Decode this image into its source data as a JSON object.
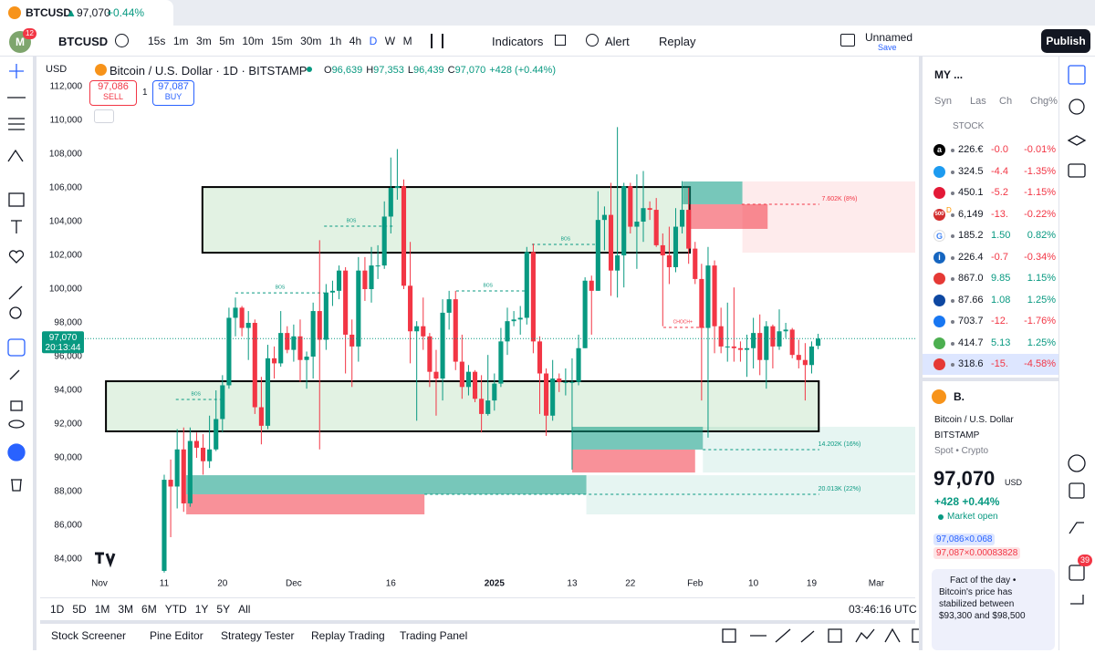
{
  "tab": {
    "symbol": "BTCUSD",
    "arrow": "▲",
    "price": "97,070",
    "change": "+0.44%"
  },
  "toolbar": {
    "avatar": "M",
    "avatar_badge": "12",
    "symbol": "BTCUSD",
    "intervals": [
      "15s",
      "1m",
      "3m",
      "5m",
      "10m",
      "15m",
      "30m",
      "1h",
      "4h",
      "D",
      "W",
      "M"
    ],
    "active_interval": 9,
    "indicators": "Indicators",
    "alert": "Alert",
    "replay": "Replay",
    "layout_name": "Unnamed",
    "save": "Save",
    "publish": "Publish"
  },
  "legend": {
    "currency": "USD",
    "title": "Bitcoin / U.S. Dollar · 1D · BITSTAMP",
    "ohlc": [
      {
        "k": "O",
        "v": "96,639"
      },
      {
        "k": "H",
        "v": "97,353"
      },
      {
        "k": "L",
        "v": "96,439"
      },
      {
        "k": "C",
        "v": "97,070"
      }
    ],
    "change": "+428 (+0.44%)",
    "sell_price": "97,086",
    "sell": "SELL",
    "spread": "1",
    "buy_price": "97,087",
    "buy": "BUY"
  },
  "chart_data": {
    "type": "candlestick",
    "up_color": "#089981",
    "down_color": "#f23645",
    "candles": [
      [
        83300,
        89000,
        83200,
        88700
      ],
      [
        88700,
        89900,
        85300,
        88300
      ],
      [
        88300,
        91700,
        87000,
        90500
      ],
      [
        90500,
        91800,
        86800,
        87300
      ],
      [
        87300,
        91800,
        87100,
        91000
      ],
      [
        91000,
        91500,
        90000,
        90600
      ],
      [
        90600,
        91400,
        89000,
        89800
      ],
      [
        89800,
        92500,
        89400,
        90500
      ],
      [
        90500,
        94000,
        90400,
        92300
      ],
      [
        92300,
        94900,
        91500,
        94300
      ],
      [
        94300,
        98900,
        94100,
        98300
      ],
      [
        98300,
        99500,
        97200,
        98900
      ],
      [
        98900,
        99000,
        97200,
        97700
      ],
      [
        97700,
        98700,
        95800,
        98000
      ],
      [
        98000,
        98200,
        92600,
        93000
      ],
      [
        93000,
        94800,
        90800,
        91900
      ],
      [
        91900,
        96700,
        91700,
        95900
      ],
      [
        95900,
        96600,
        94700,
        95600
      ],
      [
        95600,
        98700,
        95400,
        97400
      ],
      [
        97400,
        97800,
        96200,
        96400
      ],
      [
        96400,
        97900,
        95700,
        97200
      ],
      [
        97200,
        98200,
        94500,
        95800
      ],
      [
        95800,
        96300,
        94100,
        96000
      ],
      [
        96000,
        99200,
        94700,
        98700
      ],
      [
        98700,
        102900,
        90500,
        97000
      ],
      [
        97000,
        100300,
        96400,
        99800
      ],
      [
        99800,
        100500,
        99000,
        99900
      ],
      [
        99900,
        101400,
        99400,
        101100
      ],
      [
        101100,
        101300,
        95000,
        97300
      ],
      [
        97300,
        98200,
        94200,
        96600
      ],
      [
        96600,
        101900,
        95700,
        101100
      ],
      [
        101100,
        101900,
        99300,
        100000
      ],
      [
        100000,
        102500,
        99200,
        101400
      ],
      [
        101400,
        102600,
        100600,
        101400
      ],
      [
        101400,
        105200,
        101200,
        104300
      ],
      [
        104300,
        107800,
        103300,
        106000
      ],
      [
        106000,
        108300,
        105300,
        106100
      ],
      [
        106100,
        106500,
        100000,
        100200
      ],
      [
        100200,
        102800,
        95600,
        97500
      ],
      [
        97500,
        98100,
        92200,
        97800
      ],
      [
        97800,
        99500,
        96400,
        97200
      ],
      [
        97200,
        97400,
        94200,
        95100
      ],
      [
        95100,
        96400,
        92500,
        94700
      ],
      [
        94700,
        99400,
        93400,
        98600
      ],
      [
        98600,
        99900,
        97600,
        99400
      ],
      [
        99400,
        99900,
        95200,
        95700
      ],
      [
        95700,
        97300,
        93500,
        94200
      ],
      [
        94200,
        95500,
        93700,
        95100
      ],
      [
        95100,
        95200,
        93300,
        93500
      ],
      [
        93500,
        94900,
        91500,
        92600
      ],
      [
        92600,
        96100,
        92500,
        93400
      ],
      [
        93400,
        95000,
        92800,
        94400
      ],
      [
        94400,
        97700,
        94200,
        96900
      ],
      [
        96900,
        98900,
        96100,
        98100
      ],
      [
        98100,
        98700,
        97800,
        98200
      ],
      [
        98200,
        99000,
        97300,
        98300
      ],
      [
        98300,
        102500,
        97900,
        102200
      ],
      [
        102200,
        102700,
        96200,
        96900
      ],
      [
        96900,
        97200,
        92600,
        95000
      ],
      [
        95000,
        95300,
        91300,
        92500
      ],
      [
        92500,
        95800,
        92200,
        94700
      ],
      [
        94700,
        95000,
        93900,
        94500
      ],
      [
        94500,
        95300,
        93700,
        94500
      ],
      [
        94500,
        95900,
        89300,
        94500
      ],
      [
        94500,
        97300,
        94300,
        96500
      ],
      [
        96500,
        100700,
        96500,
        100500
      ],
      [
        100500,
        100800,
        97300,
        99900
      ],
      [
        99900,
        105800,
        99900,
        104100
      ],
      [
        104100,
        104900,
        102300,
        104400
      ],
      [
        104400,
        106300,
        99600,
        101100
      ],
      [
        101100,
        109600,
        99500,
        102000
      ],
      [
        102000,
        106300,
        100100,
        106100
      ],
      [
        106100,
        106300,
        103300,
        103700
      ],
      [
        103700,
        106800,
        101200,
        104000
      ],
      [
        104000,
        107000,
        102800,
        104800
      ],
      [
        104800,
        105200,
        104100,
        104700
      ],
      [
        104700,
        105400,
        102500,
        102600
      ],
      [
        102600,
        103300,
        97800,
        102000
      ],
      [
        102000,
        103700,
        100300,
        101300
      ],
      [
        101300,
        104800,
        101000,
        103700
      ],
      [
        103700,
        106400,
        103300,
        104700
      ],
      [
        104700,
        106000,
        101500,
        102400
      ],
      [
        102400,
        102800,
        100300,
        100600
      ],
      [
        100600,
        101500,
        93400,
        97700
      ],
      [
        97700,
        102500,
        91200,
        101400
      ],
      [
        101400,
        101700,
        96200,
        97800
      ],
      [
        97800,
        98900,
        96200,
        96600
      ],
      [
        96600,
        99200,
        95700,
        96600
      ],
      [
        96600,
        100100,
        95700,
        96500
      ],
      [
        96500,
        96900,
        95700,
        96400
      ],
      [
        96400,
        97300,
        94800,
        96500
      ],
      [
        96500,
        98300,
        95300,
        97400
      ],
      [
        97400,
        98500,
        94900,
        95800
      ],
      [
        95800,
        98100,
        94100,
        97800
      ],
      [
        97800,
        97900,
        95300,
        96600
      ],
      [
        96600,
        98800,
        96400,
        97500
      ],
      [
        97500,
        98000,
        97100,
        97600
      ],
      [
        97600,
        97700,
        95900,
        96100
      ],
      [
        96100,
        97000,
        95300,
        95800
      ],
      [
        95800,
        96800,
        93400,
        95500
      ],
      [
        95500,
        96900,
        95000,
        96600
      ],
      [
        96639,
        97353,
        96439,
        97070
      ]
    ],
    "xlim": [
      -18.6,
      116
    ],
    "xticks": [
      {
        "value": -10,
        "label": "Nov"
      },
      {
        "value": 0,
        "label": "11"
      },
      {
        "value": 9,
        "label": "20"
      },
      {
        "value": 20,
        "label": "Dec"
      },
      {
        "value": 35,
        "label": "16"
      },
      {
        "value": 51,
        "label": "2025"
      },
      {
        "value": 63,
        "label": "13"
      },
      {
        "value": 72,
        "label": "22"
      },
      {
        "value": 82,
        "label": "Feb"
      },
      {
        "value": 91,
        "label": "10"
      },
      {
        "value": 100,
        "label": "19"
      },
      {
        "value": 110,
        "label": "Mar"
      }
    ],
    "ylim": [
      83190,
      113460
    ],
    "yticks": [
      {
        "value": 84000,
        "label": "84,000"
      },
      {
        "value": 86000,
        "label": "86,000"
      },
      {
        "value": 88000,
        "label": "88,000"
      },
      {
        "value": 90000,
        "label": "90,000"
      },
      {
        "value": 92000,
        "label": "92,000"
      },
      {
        "value": 94000,
        "label": "94,000"
      },
      {
        "value": 96000,
        "label": "96,000"
      },
      {
        "value": 98000,
        "label": "98,000"
      },
      {
        "value": 100000,
        "label": "100,000"
      },
      {
        "value": 102000,
        "label": "102,000"
      },
      {
        "value": 104000,
        "label": "104,000"
      },
      {
        "value": 106000,
        "label": "106,000"
      },
      {
        "value": 108000,
        "label": "108,000"
      },
      {
        "value": 110000,
        "label": "110,000"
      },
      {
        "value": 112000,
        "label": "112,000"
      }
    ],
    "grid": false,
    "price_label": {
      "value": 97070,
      "label": "97,070"
    },
    "countdown": "20:13:44",
    "boxes": [
      {
        "x": [
          89.3,
          116
        ],
        "y": [
          102160,
          106380
        ],
        "fill": "rgba(242,54,69,0.10)"
      },
      {
        "x": [
          83.2,
          116
        ],
        "y": [
          89130,
          91840
        ],
        "fill": "rgba(8,153,129,0.10)"
      },
      {
        "x": [
          65.2,
          116
        ],
        "y": [
          86650,
          88970
        ],
        "fill": "rgba(8,153,129,0.10)"
      },
      {
        "x": [
          5.9,
          81.2
        ],
        "y": [
          102160,
          106050
        ],
        "fill": "rgba(76,175,80,0.16)",
        "stroke": "#000000"
      },
      {
        "x": [
          -9,
          101.1
        ],
        "y": [
          91570,
          94540
        ],
        "fill": "rgba(76,175,80,0.16)",
        "stroke": "#000000"
      },
      {
        "x": [
          80.1,
          89.3
        ],
        "y": [
          105030,
          106380
        ],
        "fill": "rgba(8,153,129,0.55)"
      },
      {
        "x": [
          81.2,
          93.2
        ],
        "y": [
          103570,
          105030
        ],
        "fill": "rgba(242,54,69,0.55)"
      },
      {
        "x": [
          63,
          83.2
        ],
        "y": [
          90490,
          91840
        ],
        "fill": "rgba(8,153,129,0.55)"
      },
      {
        "x": [
          63,
          82
        ],
        "y": [
          89130,
          90490
        ],
        "fill": "rgba(242,54,69,0.55)"
      },
      {
        "x": [
          3.4,
          65.2
        ],
        "y": [
          87840,
          88970
        ],
        "fill": "rgba(8,153,129,0.55)"
      },
      {
        "x": [
          3.4,
          40.2
        ],
        "y": [
          86650,
          87840
        ],
        "fill": "rgba(242,54,69,0.55)"
      }
    ],
    "levels": [
      {
        "label": "BOS",
        "x": [
          1.8,
          8.9
        ],
        "y": 93460,
        "label_x": 4.9,
        "color": "#089981"
      },
      {
        "label": "BOS",
        "x": [
          11,
          24.7
        ],
        "y": 99780,
        "label_x": 17.9,
        "color": "#089981"
      },
      {
        "label": "BOS",
        "x": [
          24.7,
          35.5
        ],
        "y": 103730,
        "label_x": 28.9,
        "color": "#089981"
      },
      {
        "label": "BOS",
        "x": [
          45.1,
          56.1
        ],
        "y": 99890,
        "label_x": 50,
        "color": "#089981"
      },
      {
        "label": "BOS",
        "x": [
          56.8,
          66.9
        ],
        "y": 102650,
        "label_x": 62,
        "color": "#089981"
      },
      {
        "label": "CHOCH+",
        "x": [
          77.1,
          84.3
        ],
        "y": 97730,
        "label_x": 80.1,
        "color": "#f23645"
      },
      {
        "label": "7.602K (8%)",
        "x": [
          89.2,
          101.2
        ],
        "y": 105030,
        "label_x": 104.3,
        "color": "#f23645"
      },
      {
        "label": "14.202K (16%)",
        "x": [
          83.2,
          101.2
        ],
        "y": 90490,
        "label_x": 104.3,
        "color": "#089981"
      },
      {
        "label": "20.013K (22%)",
        "x": [
          40.2,
          101.2
        ],
        "y": 87840,
        "label_x": 104.3,
        "color": "#089981"
      }
    ]
  },
  "watchlist": {
    "title": "MY ...",
    "columns": [
      "Syn",
      "Las",
      "Ch",
      "Chg%"
    ],
    "section": "STOCK",
    "rows": [
      {
        "icon": "a",
        "icon_color": "#000000",
        "last": "226.€",
        "chg": "-0.0",
        "chg_pct": "-0.01%"
      },
      {
        "icon_color": "#1d9bf0",
        "last": "324.5",
        "chg": "-4.4",
        "chg_pct": "-1.35%"
      },
      {
        "icon_color": "#e31937",
        "last": "450.1",
        "chg": "-5.2",
        "chg_pct": "-1.15%"
      },
      {
        "icon": "500",
        "icon_color": "#d32f2f",
        "badge": "D",
        "last": "6,149",
        "chg": "-13.",
        "chg_pct": "-0.22%"
      },
      {
        "icon": "G",
        "icon_color": "#ffffff",
        "last": "185.2",
        "chg": "1.50",
        "chg_pct": "0.82%"
      },
      {
        "icon": "i",
        "icon_color": "#1565c0",
        "last": "226.4",
        "chg": "-0.7",
        "chg_pct": "-0.34%"
      },
      {
        "icon_color": "#e53935",
        "last": "867.0",
        "chg": "9.85",
        "chg_pct": "1.15%"
      },
      {
        "icon_color": "#0d47a1",
        "last": "87.66",
        "chg": "1.08",
        "chg_pct": "1.25%"
      },
      {
        "icon_color": "#1877f2",
        "last": "703.7",
        "chg": "-12.",
        "chg_pct": "-1.76%"
      },
      {
        "icon_color": "#4caf50",
        "last": "414.7",
        "chg": "5.13",
        "chg_pct": "1.25%"
      },
      {
        "icon_color": "#e53935",
        "last": "318.6",
        "chg": "-15.",
        "chg_pct": "-4.58%"
      }
    ],
    "selected_row": 10
  },
  "details": {
    "short": "B.",
    "name": "Bitcoin / U.S. Dollar",
    "exchange": "BITSTAMP",
    "kind": "Spot • Crypto",
    "price": "97,070",
    "currency": "USD",
    "change": "+428 +0.44%",
    "status": "Market open",
    "bid": "97,086×0.068",
    "ask": "97,087×0.00083828",
    "fact_title": "Fact of the day •",
    "fact": "Bitcoin's price has stabilized between $93,300 and $98,500"
  },
  "side_badge": "39",
  "bottom": {
    "ranges": [
      "1D",
      "5D",
      "1M",
      "3M",
      "6M",
      "YTD",
      "1Y",
      "5Y",
      "All"
    ],
    "clock": "03:46:16 UTC",
    "tabs": [
      "Stock Screener",
      "Pine Editor",
      "Strategy Tester",
      "Replay Trading",
      "Trading Panel"
    ]
  }
}
